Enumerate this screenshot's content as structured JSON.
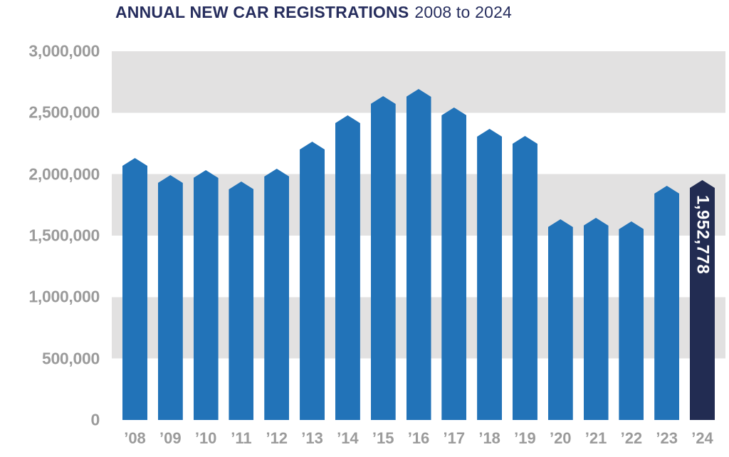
{
  "title": {
    "main": "ANNUAL NEW CAR REGISTRATIONS",
    "range": "2008 to 2024"
  },
  "colors": {
    "bar": "#2273B8",
    "highlight_bar": "#222C52",
    "band": "#E2E1E1",
    "axis_text": "#9B9B9B",
    "title_text": "#272E5E",
    "highlight_label_text": "#FFFFFF"
  },
  "chart_data": {
    "type": "bar",
    "title": "ANNUAL NEW CAR REGISTRATIONS 2008 to 2024",
    "xlabel": "",
    "ylabel": "",
    "categories": [
      "’08",
      "’09",
      "’10",
      "’11",
      "’12",
      "’13",
      "’14",
      "’15",
      "’16",
      "’17",
      "’18",
      "’19",
      "’20",
      "’21",
      "’22",
      "’23",
      "’24"
    ],
    "values": [
      2131795,
      1994999,
      2030846,
      1941253,
      2044609,
      2264737,
      2476435,
      2633503,
      2692786,
      2540617,
      2367147,
      2311140,
      1631064,
      1647181,
      1614063,
      1903054,
      1952778
    ],
    "highlight_index": 16,
    "highlight_label": "1,952,778",
    "ylim": [
      0,
      3000000
    ],
    "yticks": [
      0,
      500000,
      1000000,
      1500000,
      2000000,
      2500000,
      3000000
    ],
    "ytick_labels": [
      "0",
      "500,000",
      "1,000,000",
      "1,500,000",
      "2,000,000",
      "2,500,000",
      "3,000,000"
    ],
    "grid": "alternating horizontal gray bands every 500,000",
    "legend": "none"
  }
}
